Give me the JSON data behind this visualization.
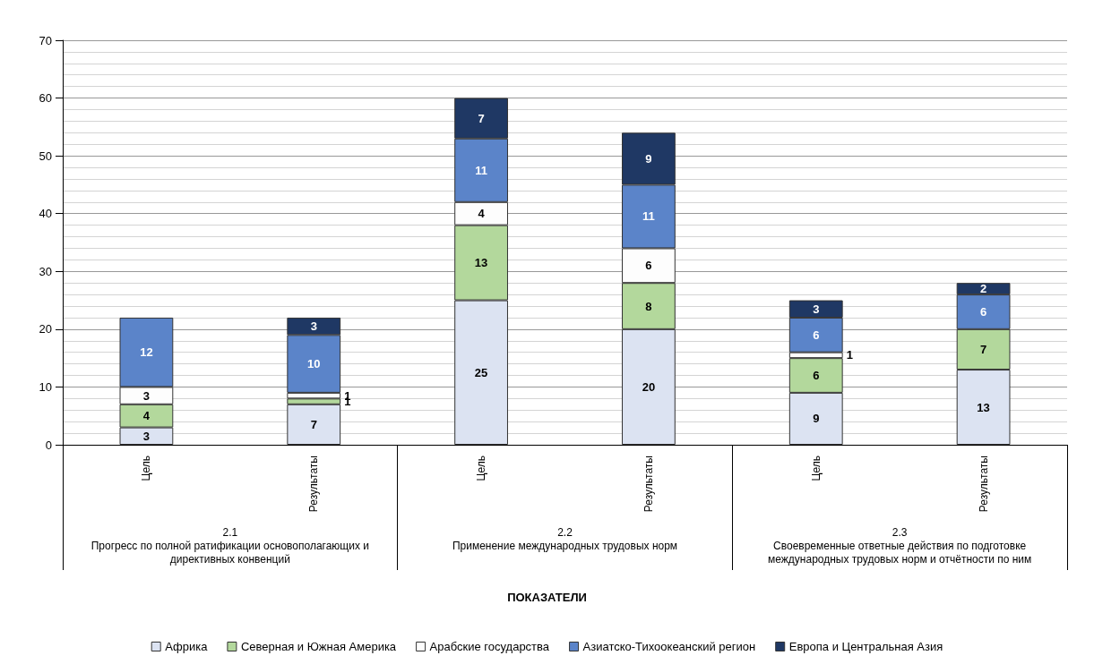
{
  "chart_data": {
    "type": "bar",
    "stacked": true,
    "categories": [
      "Цель",
      "Результаты",
      "Цель",
      "Результаты",
      "Цель",
      "Результаты"
    ],
    "series": [
      {
        "name": "Африка",
        "color": "#dce3f2",
        "values": [
          3,
          7,
          25,
          20,
          9,
          13
        ]
      },
      {
        "name": "Северная и Южная Америка",
        "color": "#b3d89c",
        "values": [
          4,
          1,
          13,
          8,
          6,
          7
        ]
      },
      {
        "name": "Арабские государства",
        "color": "#fdfdfd",
        "values": [
          3,
          1,
          4,
          6,
          1,
          null
        ]
      },
      {
        "name": "Азиатско-Тихоокеанский регион",
        "color": "#5b84c9",
        "values": [
          12,
          10,
          11,
          11,
          6,
          6
        ]
      },
      {
        "name": "Европа и Центральная Азия",
        "color": "#1f3864",
        "values": [
          null,
          3,
          7,
          9,
          3,
          2
        ]
      }
    ],
    "ylim": [
      0,
      70
    ],
    "yticks": [
      0,
      10,
      20,
      30,
      40,
      50,
      60,
      70
    ],
    "grid": true,
    "legend": "bottom",
    "data_labels": true,
    "annotations": [
      "2.1\nПрогресс по полной ратификации основополагающих и директивных конвенций",
      "2.2\nПрименение международных трудовых норм",
      "2.3\nСвоевременные ответные действия по подготовке международных трудовых норм и отчётности по ним",
      "ПОКАЗАТЕЛИ"
    ]
  }
}
